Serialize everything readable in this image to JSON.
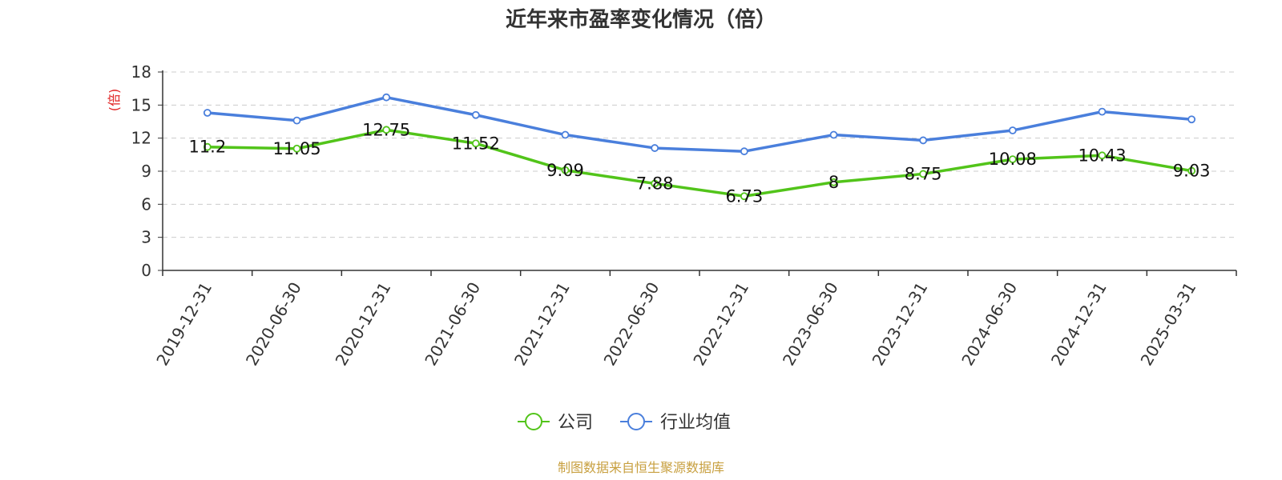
{
  "chart_data": {
    "type": "line",
    "title": "近年来市盈率变化情况（倍）",
    "xlabel": "",
    "ylabel": "(倍)",
    "ylim": [
      0,
      18
    ],
    "yticks": [
      0,
      3,
      6,
      9,
      12,
      15,
      18
    ],
    "grid": true,
    "legend_position": "bottom-center",
    "categories": [
      "2019-12-31",
      "2020-06-30",
      "2020-12-31",
      "2021-06-30",
      "2021-12-31",
      "2022-06-30",
      "2022-12-31",
      "2023-06-30",
      "2023-12-31",
      "2024-06-30",
      "2024-12-31",
      "2025-03-31"
    ],
    "series": [
      {
        "name": "公司",
        "color": "#52c41a",
        "show_labels": true,
        "values": [
          11.2,
          11.05,
          12.75,
          11.52,
          9.09,
          7.88,
          6.73,
          8,
          8.75,
          10.08,
          10.43,
          9.03
        ],
        "labels": [
          "11.2",
          "11.05",
          "12.75",
          "11.52",
          "9.09",
          "7.88",
          "6.73",
          "8",
          "8.75",
          "10.08",
          "10.43",
          "9.03"
        ]
      },
      {
        "name": "行业均值",
        "color": "#4a7fdc",
        "show_labels": false,
        "values": [
          14.3,
          13.6,
          15.7,
          14.1,
          12.3,
          11.1,
          10.8,
          12.3,
          11.8,
          12.7,
          14.4,
          13.7
        ]
      }
    ],
    "ylabel_color": "#e02020"
  },
  "footer": {
    "source": "制图数据来自恒生聚源数据库",
    "source_color": "#c8a040"
  }
}
